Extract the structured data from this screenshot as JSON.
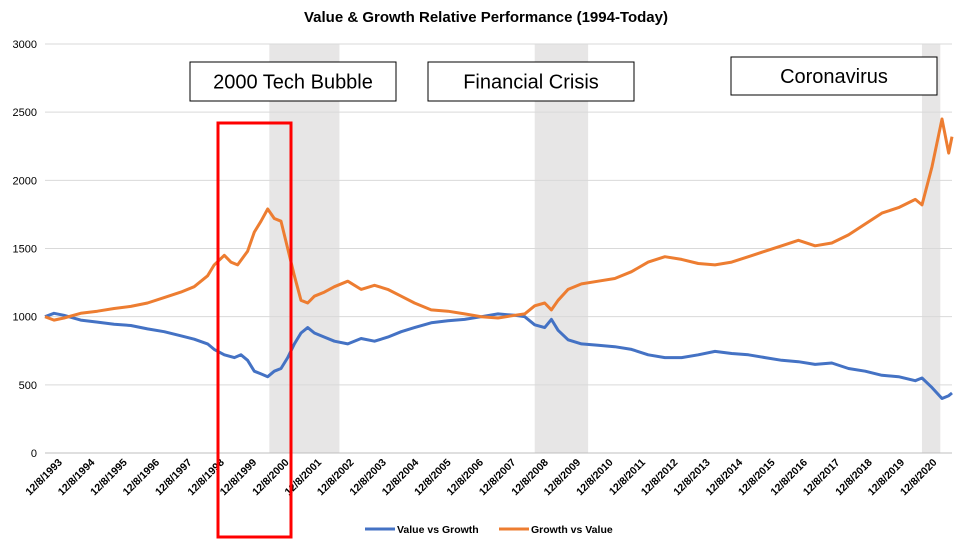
{
  "chart_data": {
    "type": "line",
    "title": "Value & Growth Relative Performance (1994-Today)",
    "xlabel": "",
    "ylabel": "",
    "ylim": [
      0,
      3000
    ],
    "yticks": [
      0,
      500,
      1000,
      1500,
      2000,
      2500,
      3000
    ],
    "xlim": [
      1993.93,
      2021.1
    ],
    "x_tick_labels": [
      "12/8/1993",
      "12/8/1994",
      "12/8/1995",
      "12/8/1996",
      "12/8/1997",
      "12/8/1998",
      "12/8/1999",
      "12/8/2000",
      "12/8/2001",
      "12/8/2002",
      "12/8/2003",
      "12/8/2004",
      "12/8/2005",
      "12/8/2006",
      "12/8/2007",
      "12/8/2008",
      "12/8/2009",
      "12/8/2010",
      "12/8/2011",
      "12/8/2012",
      "12/8/2013",
      "12/8/2014",
      "12/8/2015",
      "12/8/2016",
      "12/8/2017",
      "12/8/2018",
      "12/8/2019",
      "12/8/2020"
    ],
    "grid": "horizontal",
    "legend_position": "bottom",
    "series": [
      {
        "name": "Value vs Growth",
        "color": "#4472C4",
        "points": [
          [
            1993.93,
            1000
          ],
          [
            1994.2,
            1025
          ],
          [
            1994.5,
            1010
          ],
          [
            1995.0,
            975
          ],
          [
            1995.5,
            960
          ],
          [
            1996.0,
            945
          ],
          [
            1996.5,
            935
          ],
          [
            1997.0,
            910
          ],
          [
            1997.5,
            890
          ],
          [
            1998.0,
            860
          ],
          [
            1998.4,
            835
          ],
          [
            1998.8,
            800
          ],
          [
            1999.0,
            760
          ],
          [
            1999.3,
            720
          ],
          [
            1999.6,
            700
          ],
          [
            1999.8,
            720
          ],
          [
            2000.0,
            680
          ],
          [
            2000.2,
            600
          ],
          [
            2000.4,
            580
          ],
          [
            2000.6,
            560
          ],
          [
            2000.8,
            600
          ],
          [
            2001.0,
            620
          ],
          [
            2001.2,
            700
          ],
          [
            2001.4,
            800
          ],
          [
            2001.6,
            880
          ],
          [
            2001.8,
            920
          ],
          [
            2002.0,
            880
          ],
          [
            2002.3,
            850
          ],
          [
            2002.6,
            820
          ],
          [
            2003.0,
            800
          ],
          [
            2003.4,
            840
          ],
          [
            2003.8,
            820
          ],
          [
            2004.2,
            850
          ],
          [
            2004.6,
            890
          ],
          [
            2005.0,
            920
          ],
          [
            2005.5,
            955
          ],
          [
            2006.0,
            970
          ],
          [
            2006.5,
            980
          ],
          [
            2007.0,
            1000
          ],
          [
            2007.5,
            1020
          ],
          [
            2008.0,
            1010
          ],
          [
            2008.3,
            1000
          ],
          [
            2008.6,
            940
          ],
          [
            2008.9,
            920
          ],
          [
            2009.1,
            980
          ],
          [
            2009.3,
            900
          ],
          [
            2009.6,
            830
          ],
          [
            2010.0,
            800
          ],
          [
            2010.5,
            790
          ],
          [
            2011.0,
            780
          ],
          [
            2011.5,
            760
          ],
          [
            2012.0,
            720
          ],
          [
            2012.5,
            700
          ],
          [
            2013.0,
            700
          ],
          [
            2013.5,
            720
          ],
          [
            2014.0,
            745
          ],
          [
            2014.5,
            730
          ],
          [
            2015.0,
            720
          ],
          [
            2015.5,
            700
          ],
          [
            2016.0,
            680
          ],
          [
            2016.5,
            670
          ],
          [
            2017.0,
            650
          ],
          [
            2017.5,
            660
          ],
          [
            2018.0,
            620
          ],
          [
            2018.5,
            600
          ],
          [
            2019.0,
            570
          ],
          [
            2019.5,
            560
          ],
          [
            2020.0,
            530
          ],
          [
            2020.2,
            550
          ],
          [
            2020.5,
            480
          ],
          [
            2020.8,
            400
          ],
          [
            2021.0,
            420
          ],
          [
            2021.1,
            440
          ]
        ]
      },
      {
        "name": "Growth vs Value",
        "color": "#ED7D31",
        "points": [
          [
            1993.93,
            1000
          ],
          [
            1994.2,
            975
          ],
          [
            1994.5,
            990
          ],
          [
            1995.0,
            1025
          ],
          [
            1995.5,
            1040
          ],
          [
            1996.0,
            1060
          ],
          [
            1996.5,
            1075
          ],
          [
            1997.0,
            1100
          ],
          [
            1997.5,
            1140
          ],
          [
            1998.0,
            1180
          ],
          [
            1998.4,
            1220
          ],
          [
            1998.8,
            1300
          ],
          [
            1999.0,
            1380
          ],
          [
            1999.3,
            1450
          ],
          [
            1999.5,
            1400
          ],
          [
            1999.7,
            1380
          ],
          [
            2000.0,
            1480
          ],
          [
            2000.2,
            1620
          ],
          [
            2000.4,
            1700
          ],
          [
            2000.6,
            1790
          ],
          [
            2000.8,
            1720
          ],
          [
            2001.0,
            1700
          ],
          [
            2001.2,
            1500
          ],
          [
            2001.4,
            1300
          ],
          [
            2001.6,
            1120
          ],
          [
            2001.8,
            1100
          ],
          [
            2002.0,
            1150
          ],
          [
            2002.3,
            1180
          ],
          [
            2002.6,
            1220
          ],
          [
            2003.0,
            1260
          ],
          [
            2003.4,
            1200
          ],
          [
            2003.8,
            1230
          ],
          [
            2004.2,
            1200
          ],
          [
            2004.6,
            1150
          ],
          [
            2005.0,
            1100
          ],
          [
            2005.5,
            1050
          ],
          [
            2006.0,
            1040
          ],
          [
            2006.5,
            1020
          ],
          [
            2007.0,
            1000
          ],
          [
            2007.5,
            990
          ],
          [
            2008.0,
            1010
          ],
          [
            2008.3,
            1020
          ],
          [
            2008.6,
            1080
          ],
          [
            2008.9,
            1100
          ],
          [
            2009.1,
            1050
          ],
          [
            2009.3,
            1120
          ],
          [
            2009.6,
            1200
          ],
          [
            2010.0,
            1240
          ],
          [
            2010.5,
            1260
          ],
          [
            2011.0,
            1280
          ],
          [
            2011.5,
            1330
          ],
          [
            2012.0,
            1400
          ],
          [
            2012.5,
            1440
          ],
          [
            2013.0,
            1420
          ],
          [
            2013.5,
            1390
          ],
          [
            2014.0,
            1380
          ],
          [
            2014.5,
            1400
          ],
          [
            2015.0,
            1440
          ],
          [
            2015.5,
            1480
          ],
          [
            2016.0,
            1520
          ],
          [
            2016.5,
            1560
          ],
          [
            2017.0,
            1520
          ],
          [
            2017.5,
            1540
          ],
          [
            2018.0,
            1600
          ],
          [
            2018.5,
            1680
          ],
          [
            2019.0,
            1760
          ],
          [
            2019.5,
            1800
          ],
          [
            2020.0,
            1860
          ],
          [
            2020.2,
            1820
          ],
          [
            2020.5,
            2100
          ],
          [
            2020.8,
            2450
          ],
          [
            2021.0,
            2200
          ],
          [
            2021.1,
            2320
          ]
        ]
      }
    ],
    "shaded_ranges": [
      [
        2000.65,
        2002.75
      ],
      [
        2008.6,
        2010.2
      ],
      [
        2020.2,
        2020.75
      ]
    ],
    "annotations": [
      {
        "text": "2000 Tech Bubble"
      },
      {
        "text": "Financial Crisis"
      },
      {
        "text": "Coronavirus"
      }
    ],
    "highlight_box_color": "#FF0000"
  }
}
